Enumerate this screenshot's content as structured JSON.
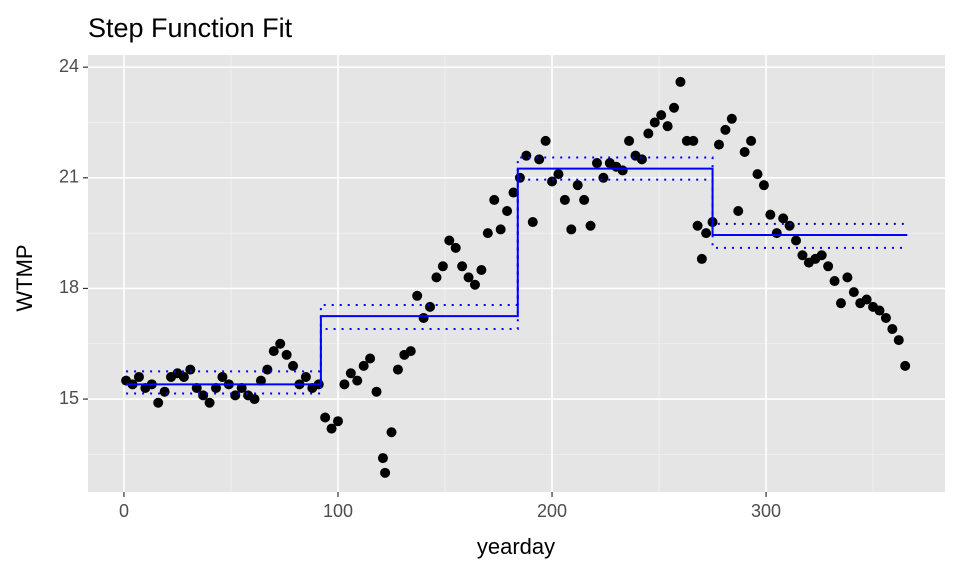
{
  "chart_data": {
    "type": "scatter",
    "title": "Step Function Fit",
    "xlabel": "yearday",
    "ylabel": "WTMP",
    "xlim": [
      -16.8,
      383.6
    ],
    "ylim": [
      12.48,
      24.33
    ],
    "xticks": [
      0,
      100,
      200,
      300
    ],
    "yticks": [
      15,
      18,
      21,
      24
    ],
    "xminor": [
      50,
      150,
      250,
      350
    ],
    "yminor": [
      13.5,
      16.5,
      19.5,
      22.5
    ],
    "grid": true,
    "point_color": "#000000",
    "x": [
      1,
      4,
      7,
      10,
      13,
      16,
      19,
      22,
      25,
      28,
      31,
      34,
      37,
      40,
      43,
      46,
      49,
      52,
      55,
      58,
      61,
      64,
      67,
      70,
      73,
      76,
      79,
      82,
      85,
      88,
      91,
      94,
      97,
      100,
      103,
      106,
      109,
      112,
      115,
      118,
      121,
      122,
      125,
      128,
      131,
      134,
      137,
      140,
      143,
      146,
      149,
      152,
      155,
      158,
      161,
      164,
      167,
      170,
      173,
      176,
      179,
      182,
      185,
      188,
      191,
      194,
      197,
      200,
      203,
      206,
      209,
      212,
      215,
      218,
      221,
      224,
      227,
      230,
      233,
      236,
      239,
      242,
      245,
      248,
      251,
      254,
      257,
      260,
      263,
      266,
      268,
      270,
      272,
      275,
      278,
      281,
      284,
      287,
      290,
      293,
      296,
      299,
      302,
      305,
      308,
      311,
      314,
      317,
      320,
      323,
      326,
      329,
      332,
      335,
      338,
      341,
      344,
      347,
      350,
      353,
      356,
      359,
      362,
      365
    ],
    "values": [
      15.5,
      15.4,
      15.6,
      15.3,
      15.4,
      14.9,
      15.2,
      15.6,
      15.7,
      15.6,
      15.8,
      15.3,
      15.1,
      14.9,
      15.3,
      15.6,
      15.4,
      15.1,
      15.3,
      15.1,
      15.0,
      15.5,
      15.8,
      16.3,
      16.5,
      16.2,
      15.9,
      15.4,
      15.6,
      15.3,
      15.4,
      14.5,
      14.2,
      14.4,
      15.4,
      15.7,
      15.5,
      15.9,
      16.1,
      15.2,
      13.4,
      13.0,
      14.1,
      15.8,
      16.2,
      16.3,
      17.8,
      17.2,
      17.5,
      18.3,
      18.6,
      19.3,
      19.1,
      18.6,
      18.3,
      18.1,
      18.5,
      19.5,
      20.4,
      19.6,
      20.1,
      20.6,
      21.0,
      21.6,
      19.8,
      21.5,
      22.0,
      20.9,
      21.1,
      20.4,
      19.6,
      20.8,
      20.4,
      19.7,
      21.4,
      21.0,
      21.4,
      21.3,
      21.2,
      22.0,
      21.6,
      21.5,
      22.2,
      22.5,
      22.7,
      22.4,
      22.9,
      23.6,
      22.0,
      22.0,
      19.7,
      18.8,
      19.5,
      19.8,
      21.9,
      22.3,
      22.6,
      20.1,
      21.7,
      22.0,
      21.1,
      20.8,
      20.0,
      19.5,
      19.9,
      19.7,
      19.3,
      18.9,
      18.7,
      18.8,
      18.9,
      18.6,
      18.2,
      17.6,
      18.3,
      17.9,
      17.6,
      17.7,
      17.5,
      17.4,
      17.2,
      16.9,
      16.6,
      15.9
    ],
    "steps": {
      "color": "#0000ff",
      "breaks": [
        1,
        92,
        184,
        275,
        366
      ],
      "fit": [
        15.4,
        17.25,
        21.25,
        19.45
      ],
      "lower": [
        15.15,
        16.9,
        20.95,
        19.1
      ],
      "upper": [
        15.75,
        17.55,
        21.55,
        19.75
      ]
    }
  }
}
